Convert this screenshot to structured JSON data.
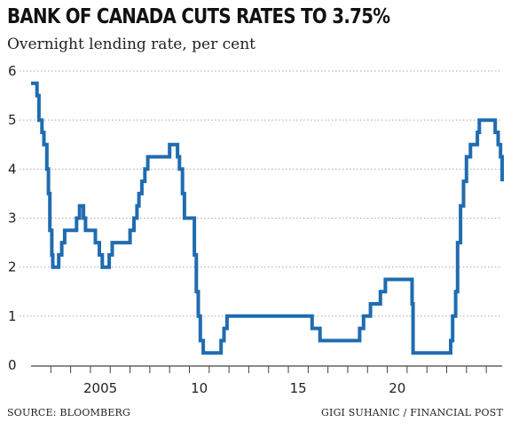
{
  "title": "BANK OF CANADA CUTS RATES TO 3.75%",
  "subtitle": "Overnight lending rate, per cent",
  "source": "SOURCE: BLOOMBERG",
  "credit": "GIGI SUHANIC / FINANCIAL POST",
  "colors": {
    "line": "#1f6cb0",
    "grid": "#aaaaaa",
    "axis": "#444444",
    "text": "#222222"
  },
  "chart_data": {
    "type": "line",
    "title": "BANK OF CANADA CUTS RATES TO 3.75%",
    "subtitle": "Overnight lending rate, per cent",
    "xlabel": "",
    "ylabel": "",
    "xlim": [
      2001.0,
      2024.8
    ],
    "ylim": [
      0,
      6
    ],
    "grid": "horizontal dotted",
    "y_ticks": [
      0,
      1,
      2,
      3,
      4,
      5,
      6
    ],
    "x_ticks": [
      {
        "value": 2005,
        "label": "2005"
      },
      {
        "value": 2010,
        "label": "10"
      },
      {
        "value": 2015,
        "label": "15"
      },
      {
        "value": 2020,
        "label": "20"
      }
    ],
    "series": [
      {
        "step": true,
        "points": [
          [
            2001.0,
            5.75
          ],
          [
            2001.25,
            5.75
          ],
          [
            2001.3,
            5.5
          ],
          [
            2001.4,
            5.0
          ],
          [
            2001.55,
            4.75
          ],
          [
            2001.65,
            4.5
          ],
          [
            2001.8,
            4.0
          ],
          [
            2001.88,
            3.5
          ],
          [
            2001.95,
            2.75
          ],
          [
            2002.05,
            2.25
          ],
          [
            2002.1,
            2.0
          ],
          [
            2002.35,
            2.0
          ],
          [
            2002.4,
            2.25
          ],
          [
            2002.55,
            2.5
          ],
          [
            2002.7,
            2.75
          ],
          [
            2003.3,
            3.0
          ],
          [
            2003.45,
            3.25
          ],
          [
            2003.65,
            3.0
          ],
          [
            2003.75,
            2.75
          ],
          [
            2004.25,
            2.5
          ],
          [
            2004.45,
            2.25
          ],
          [
            2004.6,
            2.0
          ],
          [
            2004.95,
            2.25
          ],
          [
            2005.1,
            2.5
          ],
          [
            2006.0,
            2.75
          ],
          [
            2006.2,
            3.0
          ],
          [
            2006.35,
            3.25
          ],
          [
            2006.45,
            3.5
          ],
          [
            2006.6,
            3.75
          ],
          [
            2006.75,
            4.0
          ],
          [
            2006.9,
            4.25
          ],
          [
            2008.0,
            4.5
          ],
          [
            2008.4,
            4.25
          ],
          [
            2008.5,
            4.0
          ],
          [
            2008.65,
            3.5
          ],
          [
            2008.75,
            3.0
          ],
          [
            2009.25,
            2.25
          ],
          [
            2009.35,
            1.5
          ],
          [
            2009.45,
            1.0
          ],
          [
            2009.55,
            0.5
          ],
          [
            2009.7,
            0.25
          ],
          [
            2010.6,
            0.5
          ],
          [
            2010.75,
            0.75
          ],
          [
            2010.9,
            1.0
          ],
          [
            2015.2,
            0.75
          ],
          [
            2015.6,
            0.5
          ],
          [
            2017.6,
            0.75
          ],
          [
            2017.8,
            1.0
          ],
          [
            2018.15,
            1.25
          ],
          [
            2018.65,
            1.5
          ],
          [
            2018.9,
            1.75
          ],
          [
            2020.25,
            1.25
          ],
          [
            2020.3,
            0.25
          ],
          [
            2022.2,
            0.5
          ],
          [
            2022.3,
            1.0
          ],
          [
            2022.45,
            1.5
          ],
          [
            2022.55,
            2.5
          ],
          [
            2022.7,
            3.25
          ],
          [
            2022.85,
            3.75
          ],
          [
            2023.0,
            4.25
          ],
          [
            2023.2,
            4.5
          ],
          [
            2023.55,
            4.75
          ],
          [
            2023.65,
            5.0
          ],
          [
            2024.45,
            4.75
          ],
          [
            2024.6,
            4.5
          ],
          [
            2024.72,
            4.25
          ],
          [
            2024.8,
            3.75
          ]
        ]
      }
    ]
  }
}
